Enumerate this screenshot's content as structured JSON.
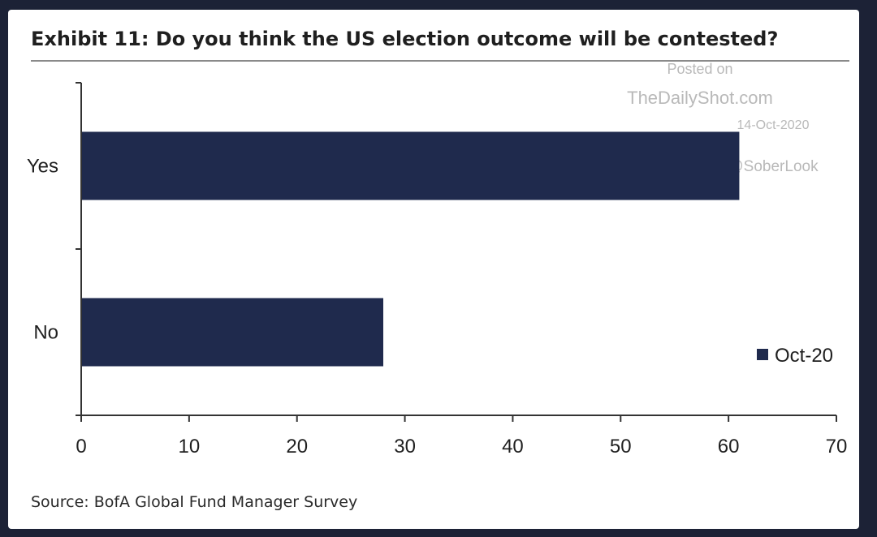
{
  "title": "Exhibit 11: Do you think the US election outcome will be contested?",
  "source": "Source: BofA Global Fund Manager Survey",
  "watermark": {
    "line1": "Posted on",
    "line2": "TheDailyShot.com",
    "line3": "14-Oct-2020",
    "line4": "@SoberLook"
  },
  "colors": {
    "bar": "#1f2a4d",
    "axis": "#333333",
    "background_frame": "#1c2236"
  },
  "chart_data": {
    "type": "bar",
    "orientation": "horizontal",
    "title": "Exhibit 11: Do you think the US election outcome will be contested?",
    "categories": [
      "Yes",
      "No"
    ],
    "series": [
      {
        "name": "Oct-20",
        "values": [
          61,
          28
        ]
      }
    ],
    "xlim": [
      0,
      70
    ],
    "xticks": [
      0,
      10,
      20,
      30,
      40,
      50,
      60,
      70
    ],
    "grid": false,
    "legend_position": "right"
  }
}
